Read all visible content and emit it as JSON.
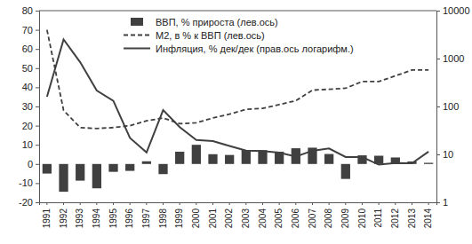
{
  "chart_data": {
    "type": "bar",
    "categories": [
      "1991",
      "1992",
      "1993",
      "1994",
      "1995",
      "1996",
      "1997",
      "1998",
      "1999",
      "2000",
      "2001",
      "2002",
      "2003",
      "2004",
      "2005",
      "2006",
      "2007",
      "2008",
      "2009",
      "2010",
      "2011",
      "2012",
      "2013",
      "2014"
    ],
    "series": [
      {
        "name": "ВВП, % прироста (лев.ось)",
        "type": "bar",
        "color": "#404040",
        "values": [
          -5,
          -14.5,
          -8.7,
          -12.7,
          -4.1,
          -3.6,
          1.4,
          -5.3,
          6.4,
          10,
          5.1,
          4.7,
          7.3,
          7.2,
          6.4,
          8.2,
          8.5,
          5.2,
          -7.8,
          4.5,
          4.3,
          3.4,
          1.3,
          0.6
        ]
      },
      {
        "name": "M2, в % к ВВП (лев.ось)",
        "type": "line",
        "line_style": "dashed",
        "color": "#404040",
        "values": [
          70,
          28,
          19,
          18.5,
          19,
          20,
          22.5,
          24,
          21,
          21.5,
          24,
          26,
          28.5,
          29,
          31,
          33,
          38.5,
          39,
          39.5,
          43,
          43,
          46,
          49,
          49
        ]
      },
      {
        "name": "Инфляция, % дек/дек (прав.ось логарифм.)",
        "type": "line",
        "line_style": "solid",
        "color": "#404040",
        "axis": "y2",
        "values": [
          160,
          2500,
          840,
          215,
          131,
          22,
          11,
          84,
          37,
          20,
          19,
          15,
          12,
          11.7,
          10.9,
          9,
          11.9,
          13.3,
          8.8,
          8.8,
          6.1,
          6.6,
          6.5,
          11.4
        ]
      }
    ],
    "ylim": [
      -20,
      80
    ],
    "yticks": [
      -20,
      -10,
      0,
      10,
      20,
      30,
      40,
      50,
      60,
      70,
      80
    ],
    "y2lim": [
      1,
      10000
    ],
    "y2ticks": [
      1,
      10,
      100,
      1000,
      10000
    ],
    "log": "y2",
    "grid": false,
    "legend": "top"
  }
}
